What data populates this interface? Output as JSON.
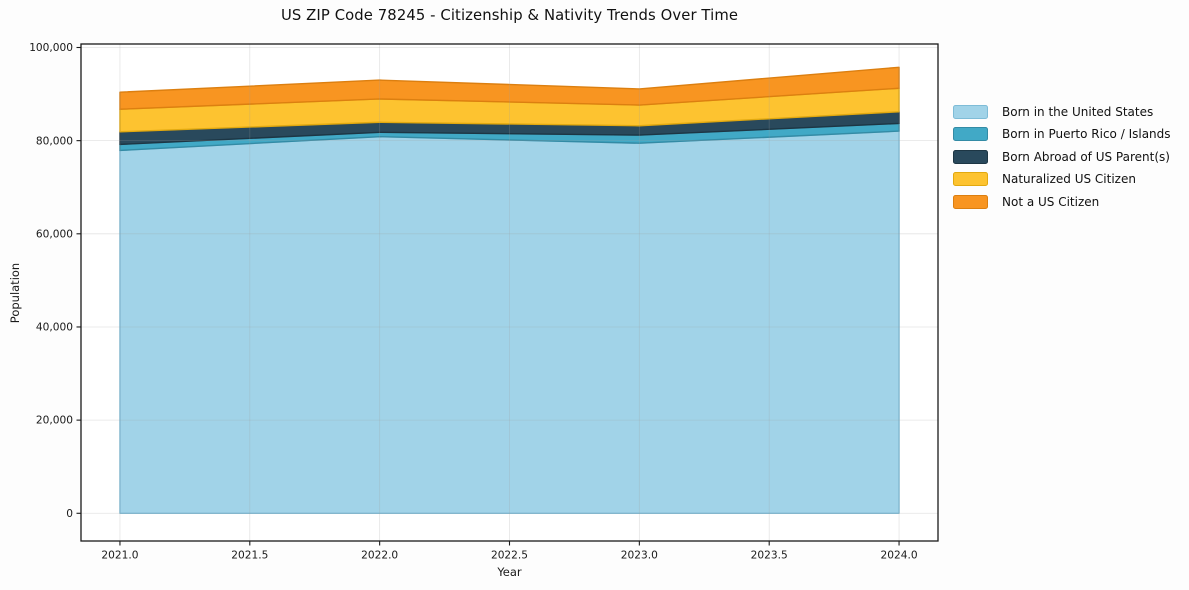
{
  "chart_data": {
    "type": "area",
    "stacked": true,
    "title": "US ZIP Code 78245 - Citizenship & Nativity Trends Over Time",
    "xlabel": "Year",
    "ylabel": "Population",
    "x": [
      2021,
      2022,
      2023,
      2024
    ],
    "series": [
      {
        "name": "Born in the United States",
        "color": "#a1d3e8",
        "edge": "#7ebcd7",
        "values": [
          77900,
          80850,
          79450,
          82050
        ]
      },
      {
        "name": "Born in Puerto Rico / Islands",
        "color": "#41a9c6",
        "edge": "#338ba5",
        "values": [
          1300,
          950,
          1750,
          1650
        ]
      },
      {
        "name": "Born Abroad of US Parent(s)",
        "color": "#29495c",
        "edge": "#1d3644",
        "values": [
          2700,
          2150,
          2000,
          2500
        ]
      },
      {
        "name": "Naturalized US Citizen",
        "color": "#fdc330",
        "edge": "#e2a90f",
        "values": [
          4850,
          5000,
          4450,
          5050
        ]
      },
      {
        "name": "Not a US Citizen",
        "color": "#f89521",
        "edge": "#dc7f10",
        "values": [
          3650,
          4050,
          3450,
          4500
        ]
      }
    ],
    "xlim": [
      2020.85,
      2024.15
    ],
    "ylim": [
      -5950,
      100750
    ],
    "xticks": [
      2021.0,
      2021.5,
      2022.0,
      2022.5,
      2023.0,
      2023.5,
      2024.0
    ],
    "xtick_labels": [
      "2021.0",
      "2021.5",
      "2022.0",
      "2022.5",
      "2023.0",
      "2023.5",
      "2024.0"
    ],
    "yticks": [
      0,
      20000,
      40000,
      60000,
      80000,
      100000
    ],
    "ytick_labels": [
      "0",
      "20,000",
      "40,000",
      "60,000",
      "80,000",
      "100,000"
    ],
    "grid": true,
    "legend_position": "right"
  }
}
